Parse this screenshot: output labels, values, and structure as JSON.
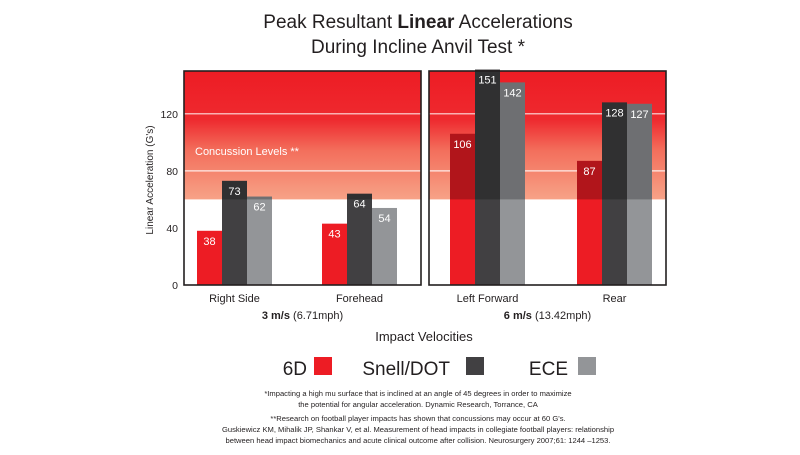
{
  "title": {
    "line1_before": "Peak Resultant ",
    "line1_bold": "Linear",
    "line1_after": " Accelerations",
    "line2": "During Incline Anvil Test *"
  },
  "chart_data": {
    "type": "bar",
    "ylabel": "Linear Acceleration (G's)",
    "xlabel": "Impact Velocities",
    "ylim": [
      0,
      150
    ],
    "yticks": [
      0,
      40,
      80,
      120
    ],
    "grid": true,
    "concussion_label": "Concussion Levels **",
    "concussion_threshold": 60,
    "panels": [
      {
        "velocity_bold": "3 m/s",
        "velocity_rest": " (6.71mph)",
        "categories": [
          "Right Side",
          "Forehead"
        ]
      },
      {
        "velocity_bold": "6 m/s",
        "velocity_rest": " (13.42mph)",
        "categories": [
          "Left Forward",
          "Rear"
        ]
      }
    ],
    "categories": [
      "Right Side",
      "Forehead",
      "Left Forward",
      "Rear"
    ],
    "series": [
      {
        "name": "6D",
        "color": "#ed1c24",
        "values": [
          38,
          43,
          106,
          87
        ]
      },
      {
        "name": "Snell/DOT",
        "color": "#414042",
        "values": [
          73,
          64,
          151,
          128
        ]
      },
      {
        "name": "ECE",
        "color": "#939598",
        "values": [
          62,
          54,
          142,
          127
        ]
      }
    ],
    "legend": "bottom"
  },
  "footnotes": {
    "note1": "*Impacting a high mu surface that is inclined at an angle of 45 degrees in order to maximize",
    "note2": "the potential for angular acceleration. Dynamic Research, Torrance, CA",
    "note3": "**Research on football player impacts has shown that concussions may occur at 60 G's.",
    "note4": "Guskiewicz KM, Mihalik JP, Shankar V, et al. Measurement of head impacts in collegiate football players: relationship",
    "note5": "between head impact biomechanics and acute clinical outcome after collision. Neurosurgery 2007;61: 1244 –1253."
  }
}
